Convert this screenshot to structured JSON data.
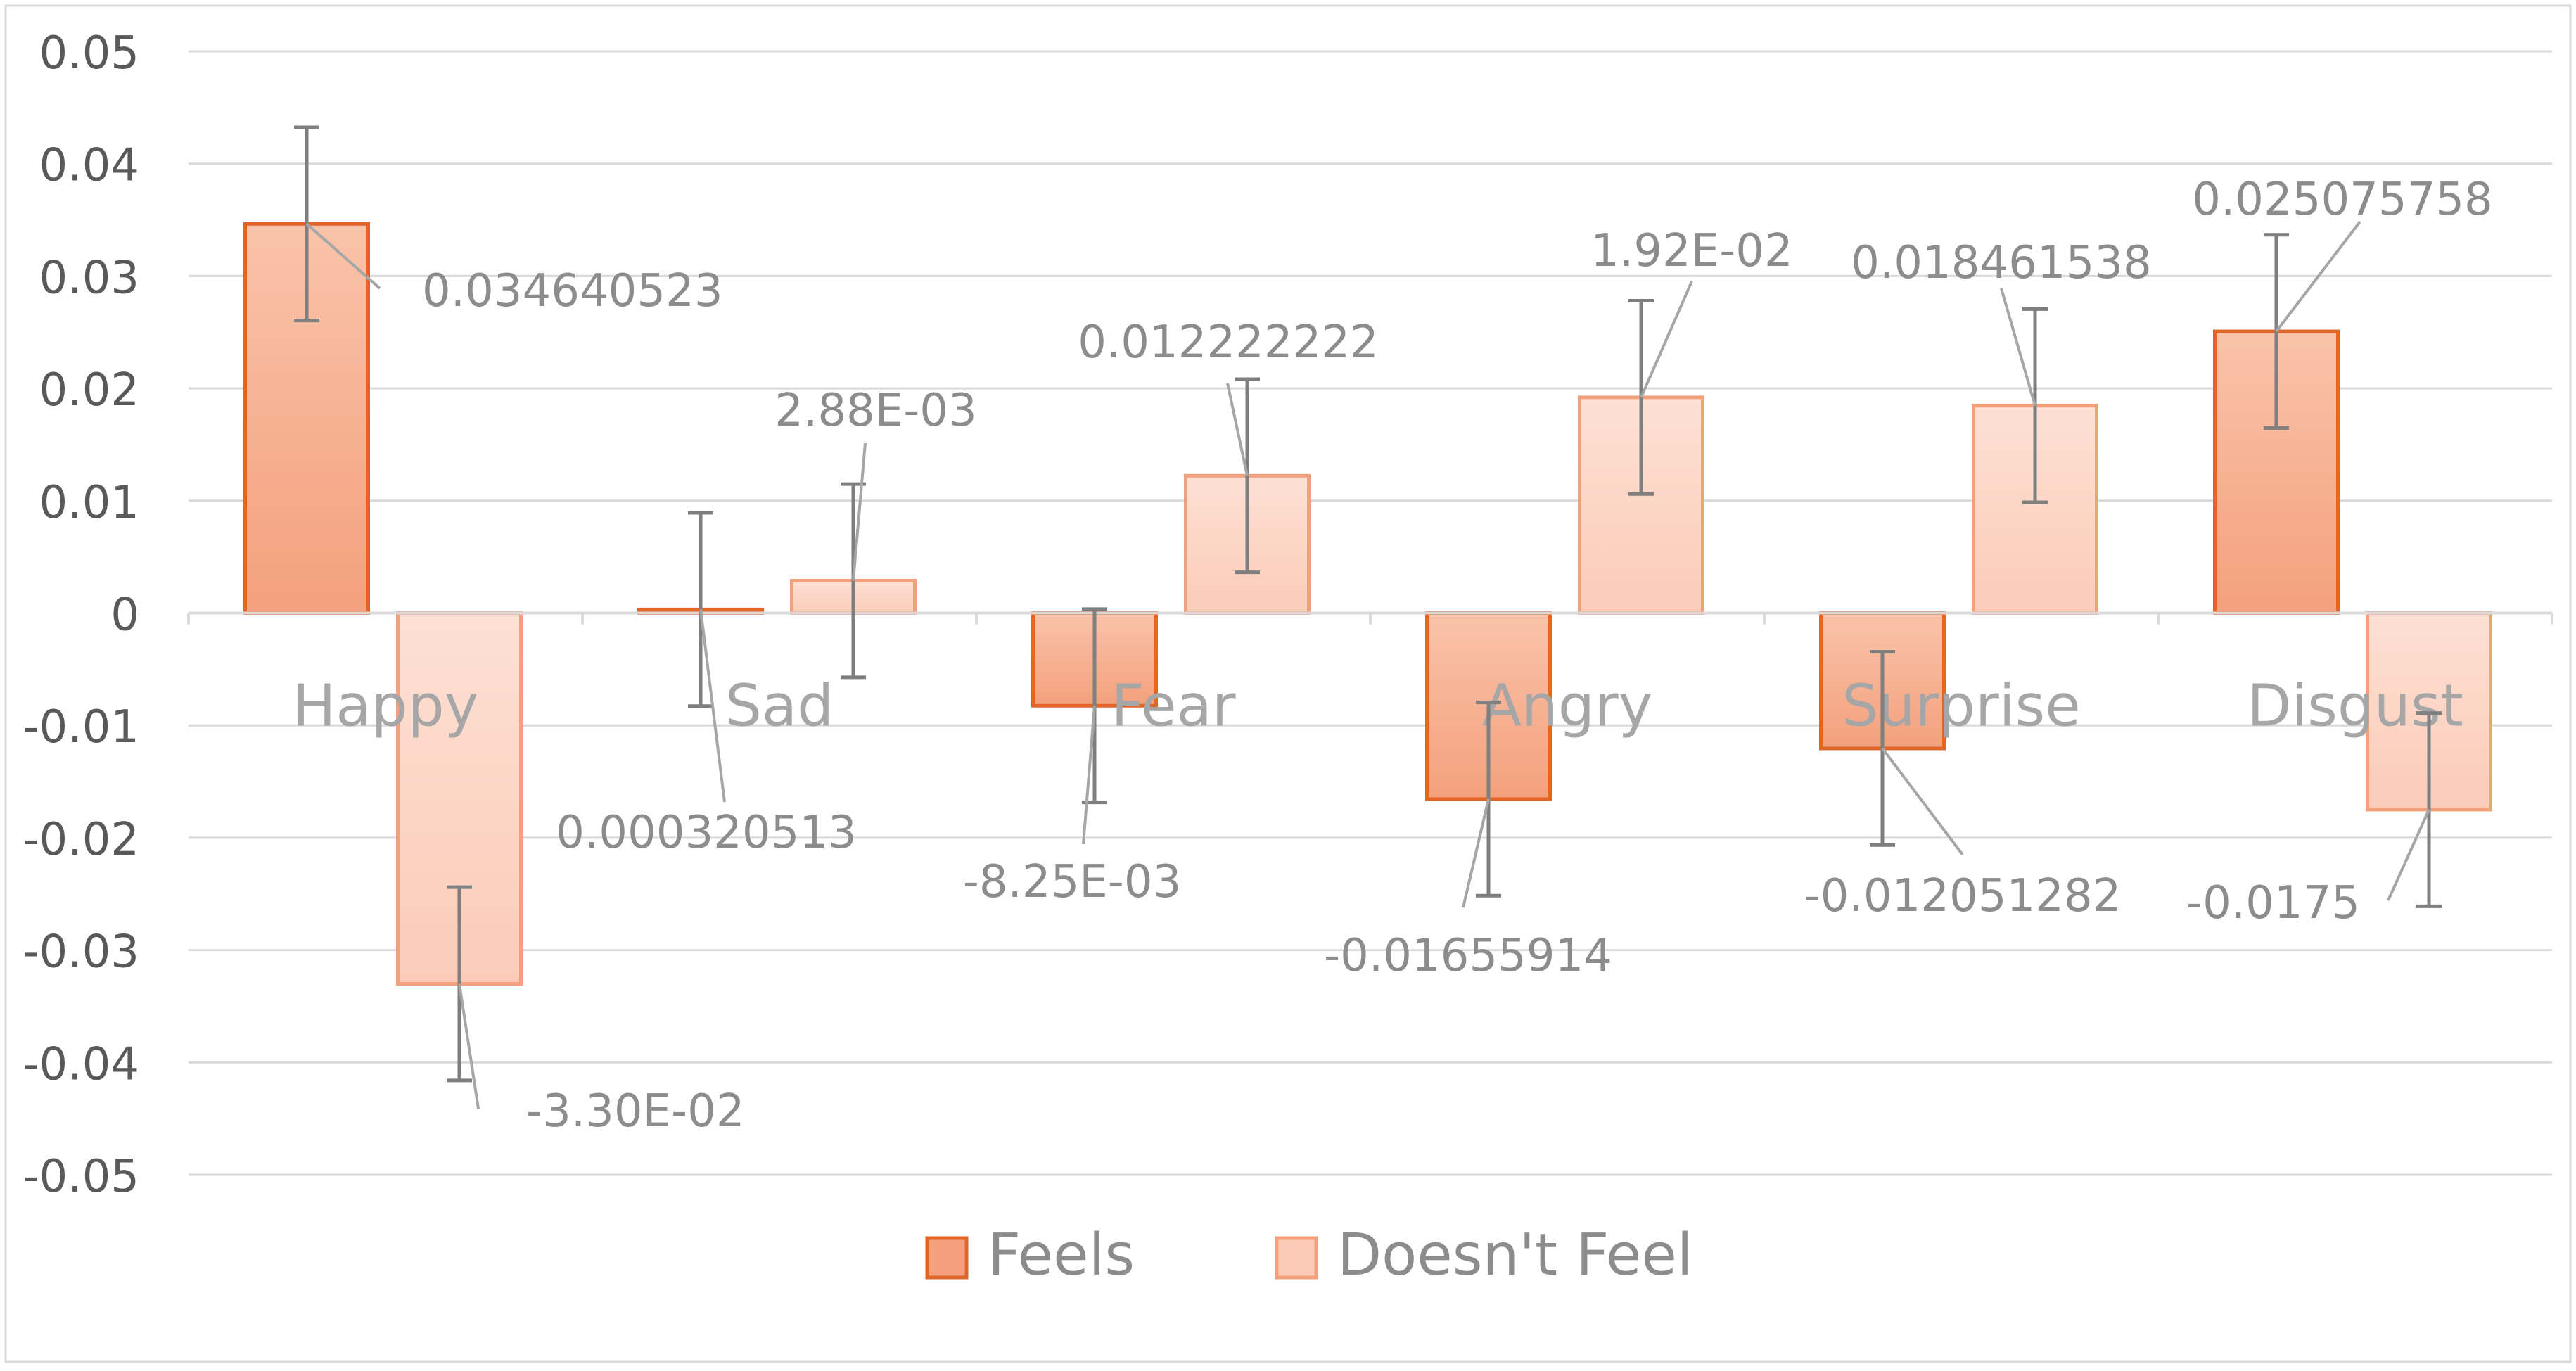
{
  "chart_data": {
    "type": "bar",
    "title": "",
    "xlabel": "",
    "ylabel": "",
    "ylim": [
      -0.05,
      0.05
    ],
    "yticks": [
      "0.05",
      "0.04",
      "0.03",
      "0.02",
      "0.01",
      "0",
      "-0.01",
      "-0.02",
      "-0.03",
      "-0.04",
      "-0.05"
    ],
    "ytick_values": [
      0.05,
      0.04,
      0.03,
      0.02,
      0.01,
      0,
      -0.01,
      -0.02,
      -0.03,
      -0.04,
      -0.05
    ],
    "grid": true,
    "legend_position": "bottom",
    "categories": [
      "Happy",
      "Sad",
      "Fear",
      "Angry",
      "Surprise",
      "Disgust"
    ],
    "series": [
      {
        "name": "Feels",
        "color": "#f4a07c",
        "edge_color": "#e0662a",
        "values": [
          0.034640523,
          0.000320513,
          -0.00825,
          -0.01655914,
          -0.012051282,
          0.025075758
        ],
        "labels": [
          "0.034640523",
          "0.000320513",
          "-8.25E-03",
          "-0.01655914",
          "-0.012051282",
          "0.025075758"
        ],
        "error": [
          0.0086,
          0.0086,
          0.0086,
          0.0086,
          0.0086,
          0.0086
        ]
      },
      {
        "name": "Doesn't Feel",
        "color": "#fbcbb8",
        "edge_color": "#f4a07c",
        "values": [
          -0.033,
          0.00288,
          0.012222222,
          0.0192,
          0.018461538,
          -0.0175
        ],
        "labels": [
          "-3.30E-02",
          "2.88E-03",
          "0.012222222",
          "1.92E-02",
          "0.018461538",
          "-0.0175"
        ],
        "error": [
          0.0086,
          0.0086,
          0.0086,
          0.0086,
          0.0086,
          0.0086
        ]
      }
    ]
  },
  "colors": {
    "axis_text": "#595959",
    "label_text": "#8c8c8c",
    "gridline": "#d9d9d9",
    "error_bar": "#7f7f7f",
    "leader_line": "#a6a6a6",
    "frame": "#d9d9d9"
  }
}
